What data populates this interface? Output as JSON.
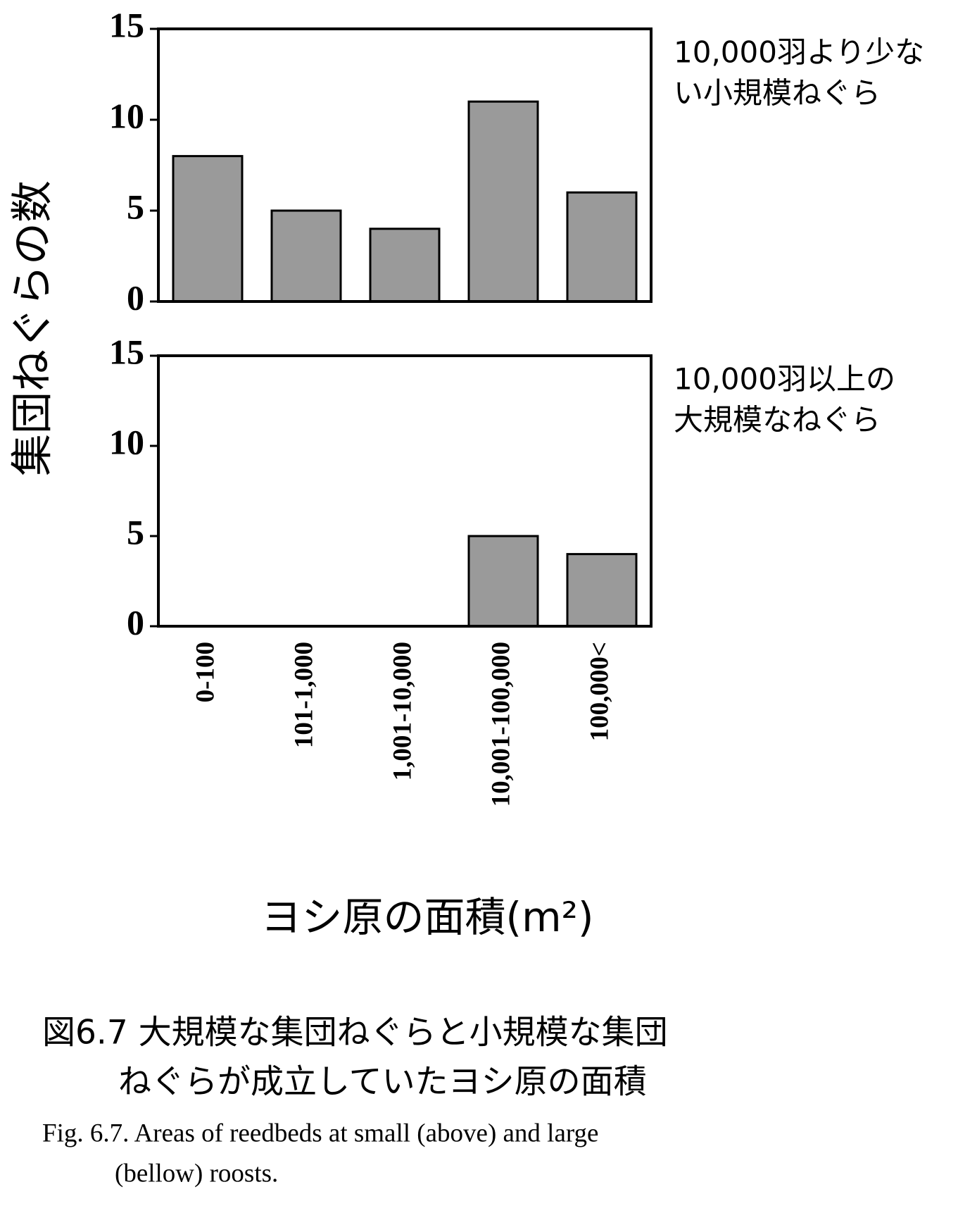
{
  "figure": {
    "ylabel": "集団ねぐらの数",
    "xlabel": "ヨシ原の面積(m²)",
    "caption_ja": [
      "図6.7 大規模な集団ねぐらと小規模な集団",
      "ねぐらが成立していたヨシ原の面積"
    ],
    "caption_en": [
      "Fig. 6.7.  Areas of reedbeds at small (above) and large",
      "(bellow) roosts."
    ]
  },
  "chart_data": [
    {
      "type": "bar",
      "annotation": [
        "10,000羽より少な",
        "い小規模ねぐら"
      ],
      "values": [
        8,
        5,
        4,
        11,
        6
      ],
      "color": "#9a9a9a",
      "ylim": [
        0,
        15
      ],
      "yticks": [
        0,
        5,
        10,
        15
      ]
    },
    {
      "type": "bar",
      "annotation": [
        "10,000羽以上の",
        "大規模なねぐら"
      ],
      "categories": [
        "0-100",
        "101-1,000",
        "1,001-10,000",
        "10,001-100,000",
        "100,000<"
      ],
      "values": [
        0,
        0,
        0,
        5,
        4
      ],
      "color": "#9a9a9a",
      "ylim": [
        0,
        15
      ],
      "yticks": [
        0,
        5,
        10,
        15
      ]
    }
  ]
}
